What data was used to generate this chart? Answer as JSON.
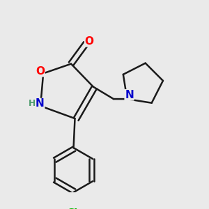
{
  "bg_color": "#eaeaea",
  "bond_color": "#1a1a1a",
  "bond_width": 1.8,
  "atom_colors": {
    "O": "#ff0000",
    "N_isox": "#0000cc",
    "N_pyrr": "#0000cc",
    "Cl": "#00bb00",
    "H": "#4a9a6a",
    "C": "#1a1a1a"
  },
  "font_size": 10,
  "fig_size": [
    3.0,
    3.0
  ],
  "dpi": 100
}
